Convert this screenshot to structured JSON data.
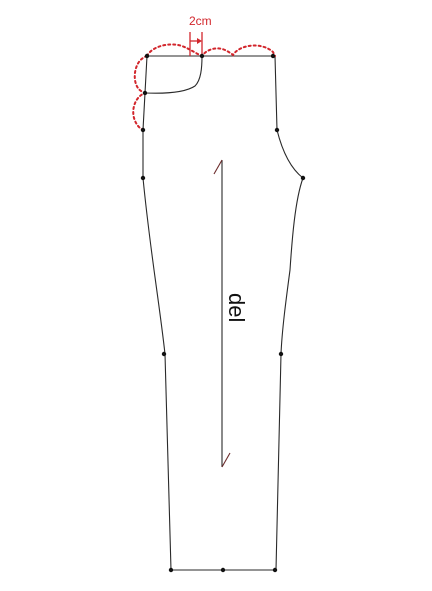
{
  "diagram": {
    "dimension_label": "2cm",
    "grain_label": "del",
    "colors": {
      "outline": "#2a2a2a",
      "points": "#111111",
      "adjustment": "#d2262c"
    }
  }
}
